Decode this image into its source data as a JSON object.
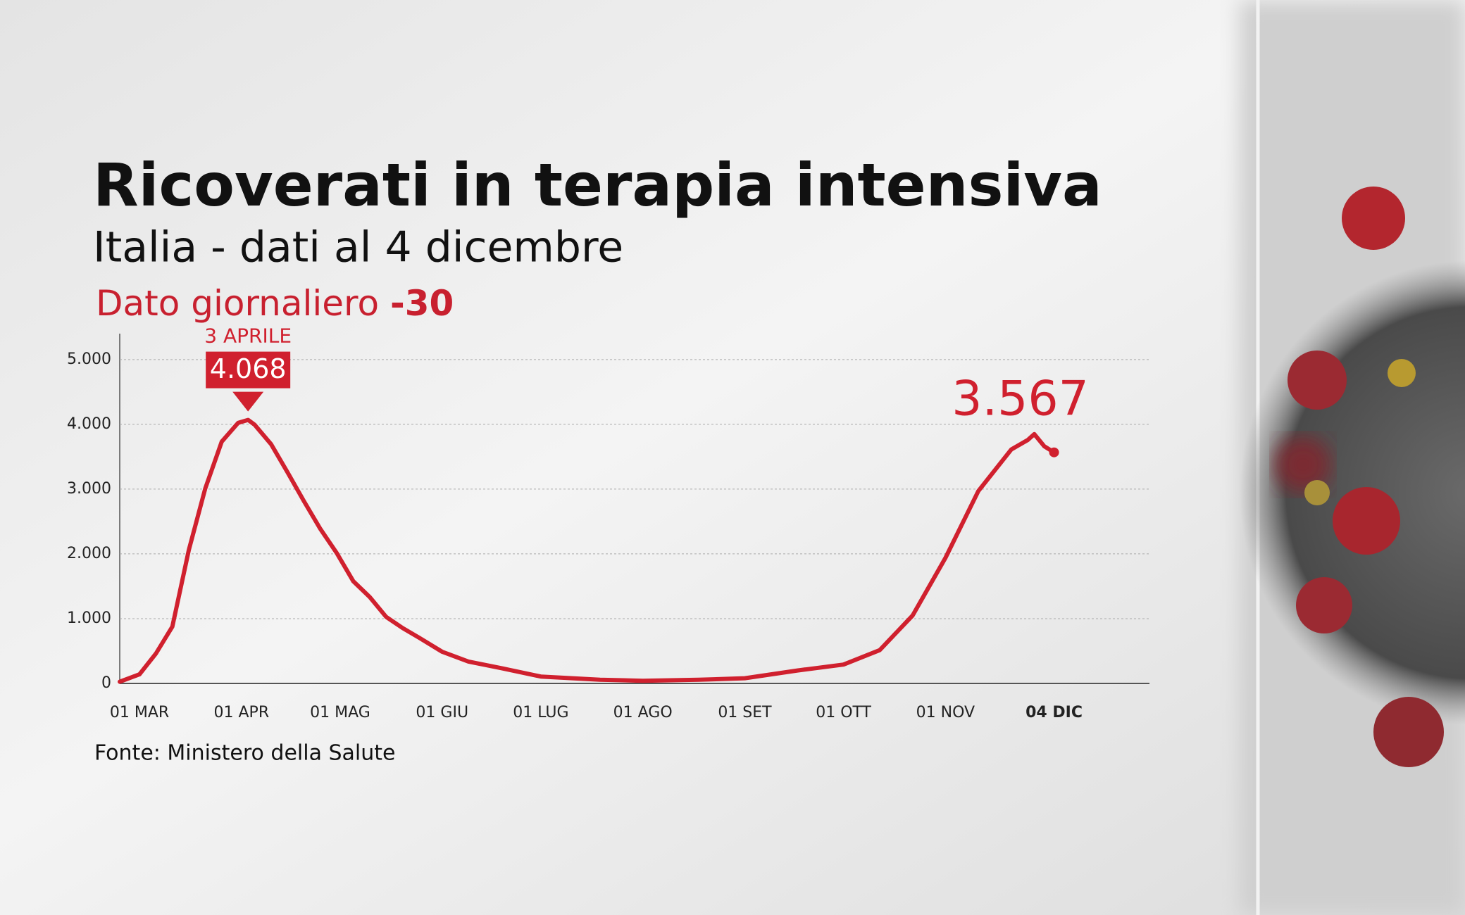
{
  "chart_data": {
    "type": "line",
    "title": "Ricoverati in terapia intensiva",
    "subtitle": "Italia - dati al 4 dicembre",
    "daily_label": "Dato giornaliero",
    "daily_change": -30,
    "annotations": [
      "3 APRILE"
    ],
    "source": "Fonte: Ministero della Salute",
    "x": [
      -6,
      0,
      5,
      10,
      15,
      20,
      25,
      30,
      33,
      35,
      40,
      45,
      50,
      55,
      60,
      65,
      70,
      75,
      80,
      85,
      92,
      100,
      110,
      122,
      140,
      153,
      170,
      184,
      200,
      214,
      225,
      235,
      245,
      255,
      265,
      270,
      272,
      275,
      278
    ],
    "series": [
      {
        "name": "Ricoverati in terapia intensiva",
        "color": "#d0202e",
        "values": [
          26,
          140,
          462,
          877,
          2060,
          3009,
          3732,
          4023,
          4068,
          3994,
          3693,
          3260,
          2812,
          2384,
          2009,
          1578,
          1333,
          1027,
          855,
          705,
          489,
          338,
          236,
          107,
          58,
          41,
          56,
          80,
          200,
          291,
          514,
          1049,
          1939,
          2971,
          3612,
          3758,
          3848,
          3663,
          3567
        ],
        "value_labels": [
          null,
          null,
          null,
          null,
          null,
          null,
          null,
          null,
          "4.068",
          null,
          null,
          null,
          null,
          null,
          null,
          null,
          null,
          null,
          null,
          null,
          null,
          null,
          null,
          null,
          null,
          null,
          null,
          null,
          null,
          null,
          null,
          null,
          null,
          null,
          null,
          null,
          null,
          null,
          "3.567"
        ]
      }
    ],
    "xlim": [
      -6,
      307
    ],
    "xticks": [
      {
        "value": 0,
        "label": "01 MAR"
      },
      {
        "value": 31,
        "label": "01 APR"
      },
      {
        "value": 61,
        "label": "01 MAG"
      },
      {
        "value": 92,
        "label": "01 GIU"
      },
      {
        "value": 122,
        "label": "01 LUG"
      },
      {
        "value": 153,
        "label": "01 AGO"
      },
      {
        "value": 184,
        "label": "01 SET"
      },
      {
        "value": 214,
        "label": "01 OTT"
      },
      {
        "value": 245,
        "label": "01 NOV"
      },
      {
        "value": 278,
        "label": "04 DIC"
      }
    ],
    "ylim": [
      0,
      5400
    ],
    "yticks": [
      0,
      {
        "value": 1000,
        "label": "1.000"
      },
      {
        "value": 2000,
        "label": "2.000"
      },
      {
        "value": 3000,
        "label": "3.000"
      },
      {
        "value": 4000,
        "label": "4.000"
      },
      {
        "value": 5000,
        "label": "5.000"
      }
    ],
    "grid": true
  }
}
